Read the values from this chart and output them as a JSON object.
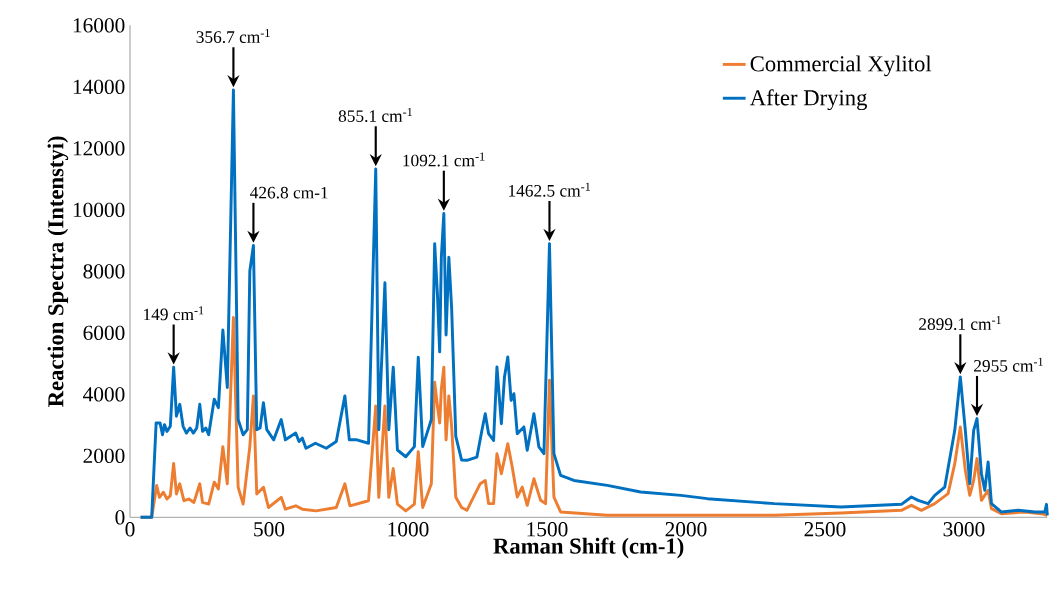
{
  "chart_data": {
    "type": "line",
    "xlabel": "Raman Shift (cm-1)",
    "ylabel": "Reaction Spectra (Intenstyi)",
    "xlim": [
      0,
      3300
    ],
    "xticks": [
      0,
      500,
      1000,
      1500,
      2000,
      2500,
      3000
    ],
    "ylim": [
      0,
      16000
    ],
    "yticks": [
      0,
      2000,
      4000,
      6000,
      8000,
      10000,
      12000,
      14000,
      16000
    ],
    "grid": false,
    "legend": "top right",
    "marker": "none",
    "line_style": "solid",
    "annotations": [
      {
        "text": "149 cm$^{-1}$",
        "x": 157,
        "y": 4883
      },
      {
        "text": "356.7 cm$^{-1}$",
        "x": 372,
        "y": 13900
      },
      {
        "text": "426.8 cm-1",
        "x": 444,
        "y": 8840
      },
      {
        "text": "855.1 cm$^{-1}$",
        "x": 884,
        "y": 11330
      },
      {
        "text": "1092.1 cm$^{-1}$",
        "x": 1129,
        "y": 9885
      },
      {
        "text": "1462.5 cm$^{-1}$",
        "x": 1509,
        "y": 8900
      },
      {
        "text": "2899.1 cm$^{-1}$",
        "x": 2987,
        "y": 4565
      },
      {
        "text": "2955 cm$^{-1}$",
        "x": 3047,
        "y": 3210
      }
    ],
    "series": [
      {
        "name": "Commercial Xylitol",
        "color": "#ed7d31",
        "x": [
          38,
          78,
          96,
          106,
          120,
          133,
          145,
          157,
          167,
          179,
          194,
          212,
          230,
          251,
          261,
          283,
          303,
          318,
          334,
          350,
          372,
          389,
          407,
          431,
          444,
          456,
          480,
          498,
          544,
          559,
          596,
          620,
          669,
          742,
          773,
          791,
          858,
          884,
          895,
          917,
          931,
          947,
          962,
          992,
          1023,
          1037,
          1053,
          1084,
          1096,
          1106,
          1114,
          1120,
          1129,
          1137,
          1147,
          1157,
          1172,
          1193,
          1212,
          1260,
          1278,
          1290,
          1308,
          1320,
          1336,
          1359,
          1375,
          1393,
          1411,
          1429,
          1453,
          1477,
          1495,
          1509,
          1525,
          1549,
          1717,
          1982,
          2318,
          2558,
          2775,
          2811,
          2847,
          2895,
          2943,
          2967,
          2987,
          3005,
          3021,
          3035,
          3047,
          3063,
          3087,
          3099,
          3135,
          3219,
          3279,
          3300
        ],
        "values": [
          0,
          0,
          1035,
          650,
          815,
          595,
          705,
          1750,
          760,
          1090,
          540,
          595,
          485,
          1090,
          485,
          430,
          1145,
          925,
          2300,
          1090,
          6500,
          980,
          430,
          2300,
          3950,
          760,
          980,
          320,
          650,
          265,
          375,
          265,
          210,
          320,
          1090,
          375,
          540,
          3620,
          650,
          3620,
          650,
          1585,
          430,
          210,
          430,
          2135,
          320,
          1090,
          4390,
          3620,
          3070,
          4170,
          4880,
          2520,
          3950,
          2960,
          650,
          320,
          228,
          1095,
          1200,
          445,
          445,
          2070,
          1420,
          2395,
          1635,
          660,
          985,
          390,
          1255,
          553,
          445,
          4455,
          660,
          175,
          65,
          65,
          65,
          141,
          228,
          390,
          228,
          445,
          770,
          1745,
          2940,
          1530,
          715,
          1200,
          1910,
          553,
          880,
          282,
          119,
          173,
          119,
          65
        ]
      },
      {
        "name": "After Drying",
        "color": "#0070c0",
        "x": [
          38,
          78,
          94,
          108,
          117,
          124,
          133,
          145,
          157,
          167,
          179,
          191,
          203,
          216,
          228,
          240,
          251,
          261,
          273,
          283,
          303,
          318,
          334,
          350,
          372,
          389,
          407,
          422,
          431,
          444,
          456,
          468,
          480,
          492,
          517,
          544,
          559,
          596,
          608,
          620,
          633,
          667,
          706,
          742,
          773,
          789,
          816,
          858,
          884,
          895,
          917,
          931,
          947,
          962,
          992,
          1023,
          1037,
          1053,
          1084,
          1096,
          1106,
          1114,
          1120,
          1129,
          1137,
          1147,
          1157,
          1172,
          1193,
          1212,
          1248,
          1266,
          1278,
          1290,
          1308,
          1320,
          1336,
          1347,
          1359,
          1371,
          1381,
          1393,
          1417,
          1429,
          1453,
          1471,
          1489,
          1509,
          1525,
          1549,
          1597,
          1717,
          1837,
          1982,
          2077,
          2318,
          2558,
          2775,
          2811,
          2835,
          2871,
          2895,
          2931,
          2967,
          2987,
          3005,
          3021,
          3035,
          3047,
          3063,
          3075,
          3087,
          3099,
          3135,
          3195,
          3255,
          3291,
          3297,
          3300
        ],
        "values": [
          0,
          0,
          3070,
          3070,
          2685,
          3015,
          2795,
          2960,
          4883,
          3290,
          3675,
          2960,
          2740,
          2905,
          2740,
          2905,
          3675,
          2795,
          2905,
          2685,
          3840,
          3565,
          6093,
          4225,
          13900,
          3180,
          2685,
          2850,
          8016,
          8840,
          2850,
          2905,
          3730,
          2850,
          2520,
          3180,
          2520,
          2740,
          2465,
          2575,
          2245,
          2410,
          2245,
          2465,
          3950,
          2520,
          2520,
          2410,
          11330,
          2850,
          7630,
          2850,
          4883,
          2190,
          1970,
          2300,
          5210,
          2300,
          3180,
          8895,
          7245,
          5380,
          8455,
          9885,
          5930,
          8455,
          6805,
          2630,
          1860,
          1855,
          1960,
          2830,
          3370,
          2720,
          2500,
          4890,
          3045,
          4555,
          5215,
          3805,
          4020,
          2720,
          2940,
          2180,
          3370,
          2290,
          2070,
          8900,
          2070,
          1365,
          1200,
          1040,
          825,
          715,
          607,
          445,
          336,
          423,
          661,
          553,
          445,
          715,
          986,
          2830,
          4565,
          2830,
          1095,
          2830,
          3210,
          1420,
          878,
          1800,
          445,
          173,
          228,
          173,
          173,
          423,
          65
        ]
      }
    ]
  }
}
